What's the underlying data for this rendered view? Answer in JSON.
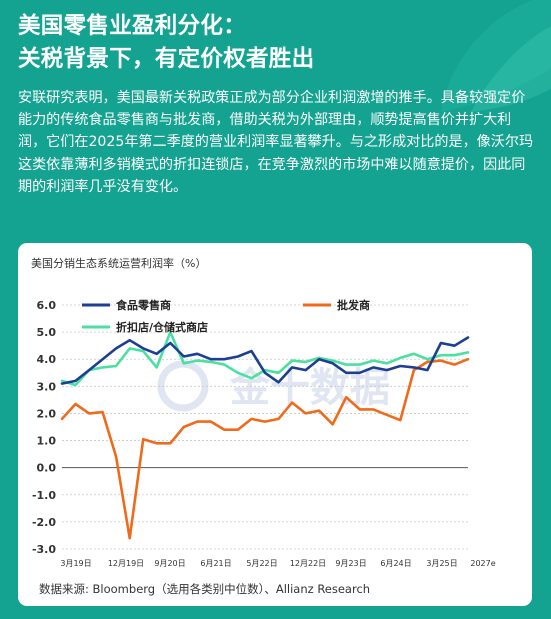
{
  "header": {
    "title_line1": "美国零售业盈利分化：",
    "title_line2": "关税背景下，有定价权者胜出"
  },
  "intro_text": "安联研究表明，美国最新关税政策正成为部分企业利润激增的推手。具备较强定价能力的传统食品零售商与批发商，借助关税为外部理由，顺势提高售价并扩大利润，它们在2025年第二季度的营业利润率显著攀升。与之形成对比的是，像沃尔玛这类依靠薄利多销模式的折扣连锁店，在竞争激烈的市场中难以随意提价，因此同期的利润率几乎没有变化。",
  "source": "数据来源: Bloomberg（选用各类别中位数）、Allianz Research",
  "watermark": "金十数据",
  "colors": {
    "background": "#14a391",
    "grocery": "#1c3f94",
    "wholesale": "#ef6a1b",
    "discount": "#49e0a0"
  },
  "chart_data": {
    "type": "line",
    "title": "美国分销生态系统运营利润率（%）",
    "ylim": [
      -3,
      6
    ],
    "y_ticks": [
      "6.0",
      "5.0",
      "4.0",
      "3.0",
      "2.0",
      "1.0",
      "0.0",
      "-1.0",
      "-2.0",
      "-3.0"
    ],
    "x_tick_labels": [
      "3月19日",
      "12月19日",
      "9月20日",
      "6月21日",
      "5月22日",
      "12月22日",
      "9月23日",
      "6月24日",
      "3月25日",
      "2027e"
    ],
    "grid": "horizontal dashed",
    "legend_position": "top",
    "series": [
      {
        "name": "食品零售商",
        "values": [
          3.1,
          3.2,
          3.6,
          4.0,
          4.4,
          4.7,
          4.4,
          4.2,
          4.6,
          4.1,
          4.2,
          4.0,
          4.0,
          4.1,
          4.3,
          3.5,
          3.15,
          3.7,
          3.6,
          4.0,
          3.85,
          3.5,
          3.5,
          3.7,
          3.6,
          3.75,
          3.7,
          3.6,
          4.6,
          4.5,
          4.8
        ]
      },
      {
        "name": "批发商",
        "values": [
          1.8,
          2.35,
          2.0,
          2.05,
          0.4,
          -2.6,
          1.05,
          0.9,
          0.9,
          1.5,
          1.7,
          1.7,
          1.4,
          1.4,
          1.8,
          1.7,
          1.8,
          2.4,
          2.0,
          2.1,
          1.6,
          2.6,
          2.15,
          2.15,
          1.95,
          1.75,
          3.6,
          3.9,
          3.95,
          3.8,
          4.0
        ]
      },
      {
        "name": "折扣店/仓储式商店",
        "values": [
          3.2,
          3.05,
          3.6,
          3.7,
          3.75,
          4.4,
          4.3,
          3.7,
          5.0,
          3.85,
          3.95,
          3.9,
          3.8,
          3.5,
          3.3,
          3.6,
          3.5,
          3.95,
          3.9,
          4.05,
          3.95,
          3.8,
          3.8,
          3.95,
          3.85,
          4.05,
          4.2,
          4.0,
          4.15,
          4.15,
          4.25
        ]
      }
    ]
  }
}
